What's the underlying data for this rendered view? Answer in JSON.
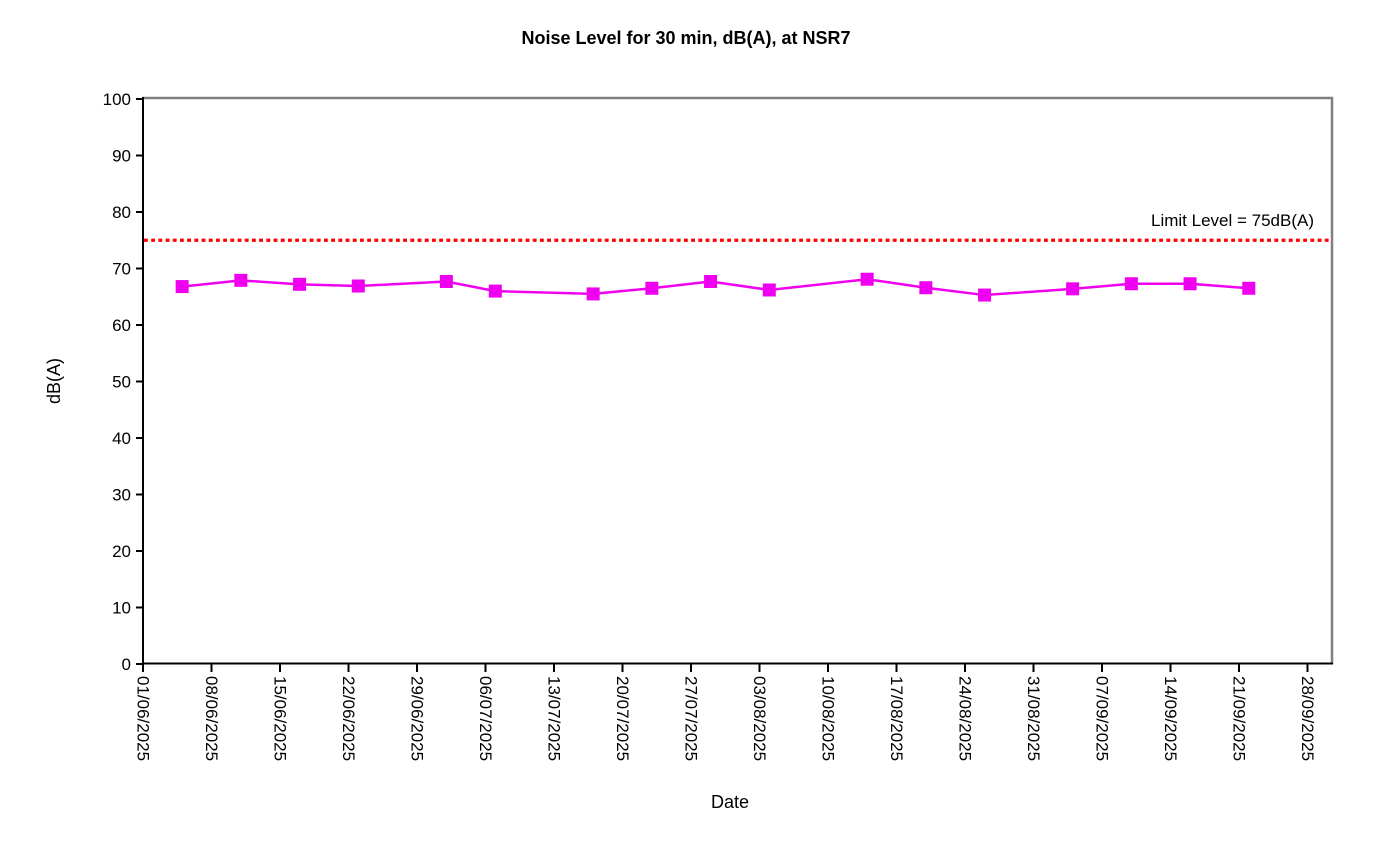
{
  "page": {
    "background": "#FFFFFF"
  },
  "chart_data": {
    "type": "line",
    "title": "Noise Level for 30 min, dB(A), at NSR7",
    "xlabel": "Date",
    "ylabel": "dB(A)",
    "ylim": [
      0,
      100
    ],
    "y_ticks": [
      0,
      10,
      20,
      30,
      40,
      50,
      60,
      70,
      80,
      90,
      100
    ],
    "x_tick_labels": [
      "01/06/2025",
      "08/06/2025",
      "15/06/2025",
      "22/06/2025",
      "29/06/2025",
      "06/07/2025",
      "13/07/2025",
      "20/07/2025",
      "27/07/2025",
      "03/08/2025",
      "10/08/2025",
      "17/08/2025",
      "24/08/2025",
      "31/08/2025",
      "07/09/2025",
      "14/09/2025",
      "21/09/2025",
      "28/09/2025"
    ],
    "x_axis_start_date": "01/06/2025",
    "x_tick_interval_days": 7,
    "grid": false,
    "legend_position": "none",
    "axis_color": "#000000",
    "plot_border_color": "#808080",
    "series": [
      {
        "color": "#F000F0",
        "marker": "square",
        "points": [
          {
            "date": "05/06/2025",
            "day_offset": 4,
            "value": 66.8
          },
          {
            "date": "11/06/2025",
            "day_offset": 10,
            "value": 67.9
          },
          {
            "date": "17/06/2025",
            "day_offset": 16,
            "value": 67.2
          },
          {
            "date": "23/06/2025",
            "day_offset": 22,
            "value": 66.9
          },
          {
            "date": "02/07/2025",
            "day_offset": 31,
            "value": 67.7
          },
          {
            "date": "07/07/2025",
            "day_offset": 36,
            "value": 66.0
          },
          {
            "date": "17/07/2025",
            "day_offset": 46,
            "value": 65.5
          },
          {
            "date": "23/07/2025",
            "day_offset": 52,
            "value": 66.5
          },
          {
            "date": "29/07/2025",
            "day_offset": 58,
            "value": 67.7
          },
          {
            "date": "04/08/2025",
            "day_offset": 64,
            "value": 66.2
          },
          {
            "date": "14/08/2025",
            "day_offset": 74,
            "value": 68.1
          },
          {
            "date": "20/08/2025",
            "day_offset": 80,
            "value": 66.6
          },
          {
            "date": "26/08/2025",
            "day_offset": 86,
            "value": 65.3
          },
          {
            "date": "04/09/2025",
            "day_offset": 95,
            "value": 66.4
          },
          {
            "date": "10/09/2025",
            "day_offset": 101,
            "value": 67.3
          },
          {
            "date": "16/09/2025",
            "day_offset": 107,
            "value": 67.3
          },
          {
            "date": "22/09/2025",
            "day_offset": 113,
            "value": 66.5
          }
        ]
      }
    ],
    "limit_line": {
      "label": "Limit Level = 75dB(A)",
      "value": 75,
      "color": "#FF0000",
      "style": "dotted"
    }
  }
}
